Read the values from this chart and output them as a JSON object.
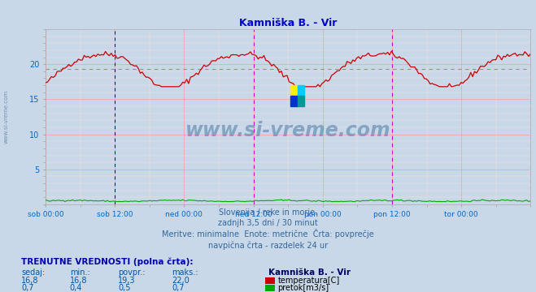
{
  "title": "Kamniška B. - Vir",
  "title_color": "#0000cc",
  "bg_color": "#c8d8e8",
  "plot_bg_color": "#c8d8e8",
  "grid_color_major": "#ff9999",
  "grid_color_minor": "#ffdddd",
  "ylim": [
    0,
    25
  ],
  "yticks": [
    0,
    5,
    10,
    15,
    20
  ],
  "xlabel_color": "#0066cc",
  "xtick_labels": [
    "sob 00:00",
    "sob 12:00",
    "ned 00:00",
    "ned 12:00",
    "pon 00:00",
    "pon 12:00",
    "tor 00:00"
  ],
  "vline_color_dash": "#000066",
  "vline_color_magenta": "#cc00cc",
  "avg_line_color": "#ff6666",
  "avg_line_value": 19.3,
  "temp_color": "#cc0000",
  "flow_color": "#00aa00",
  "watermark_text": "www.si-vreme.com",
  "watermark_color": "#336699",
  "watermark_alpha": 0.45,
  "sub_text1": "Slovenija / reke in morje.",
  "sub_text2": "zadnjh 3,5 dni / 30 minut",
  "sub_text3": "Meritve: minimalne  Enote: metrične  Črta: povprečje",
  "sub_text4": "navpična črta - razdelek 24 ur",
  "table_header": "TRENUTNE VREDNOSTI (polna črta):",
  "col_headers": [
    "sedaj:",
    "min.:",
    "povpr.:",
    "maks.:"
  ],
  "col_header_extra": "Kamniška B. - Vir",
  "row1_vals": [
    "16,8",
    "16,8",
    "19,3",
    "22,0"
  ],
  "row2_vals": [
    "0,7",
    "0,4",
    "0,5",
    "0,7"
  ],
  "row1_label": "temperatura[C]",
  "row2_label": "pretok[m3/s]",
  "n_points": 252,
  "temp_min": 16.8,
  "temp_max": 22.0,
  "temp_avg": 19.3,
  "flow_min": 0.4,
  "flow_max": 0.7,
  "flow_avg": 0.5
}
